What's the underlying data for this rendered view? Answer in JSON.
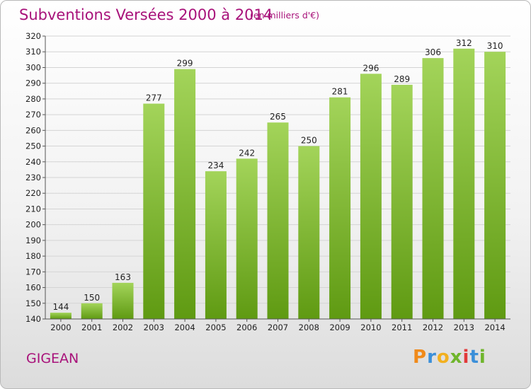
{
  "header": {
    "title": "Subventions Versées 2000 à 2014",
    "subtitle": "(en milliers d'€)"
  },
  "footer": {
    "commune": "GIGEAN",
    "logo": {
      "letters": [
        "P",
        "r",
        "o",
        "x",
        "i",
        "t",
        "i"
      ],
      "colors": [
        "#f08a1a",
        "#3b8fd9",
        "#f2b01f",
        "#6fb52c",
        "#e23a3a",
        "#3b8fd9",
        "#6fb52c"
      ]
    }
  },
  "colors": {
    "title": "#a8127a",
    "bar_light": "#a3d45a",
    "bar_dark": "#5f9a12",
    "axis": "#555555"
  },
  "chart_data": {
    "type": "bar",
    "categories": [
      "2000",
      "2001",
      "2002",
      "2003",
      "2004",
      "2005",
      "2006",
      "2007",
      "2008",
      "2009",
      "2010",
      "2011",
      "2012",
      "2013",
      "2014"
    ],
    "values": [
      144,
      150,
      163,
      277,
      299,
      234,
      242,
      265,
      250,
      281,
      296,
      289,
      306,
      312,
      310
    ],
    "title": "Subventions Versées 2000 à 2014",
    "xlabel": "",
    "ylabel": "",
    "ylim": [
      140,
      320
    ],
    "yticks": [
      140,
      150,
      160,
      170,
      180,
      190,
      200,
      210,
      220,
      230,
      240,
      250,
      260,
      270,
      280,
      290,
      300,
      310,
      320
    ],
    "grid": true
  }
}
